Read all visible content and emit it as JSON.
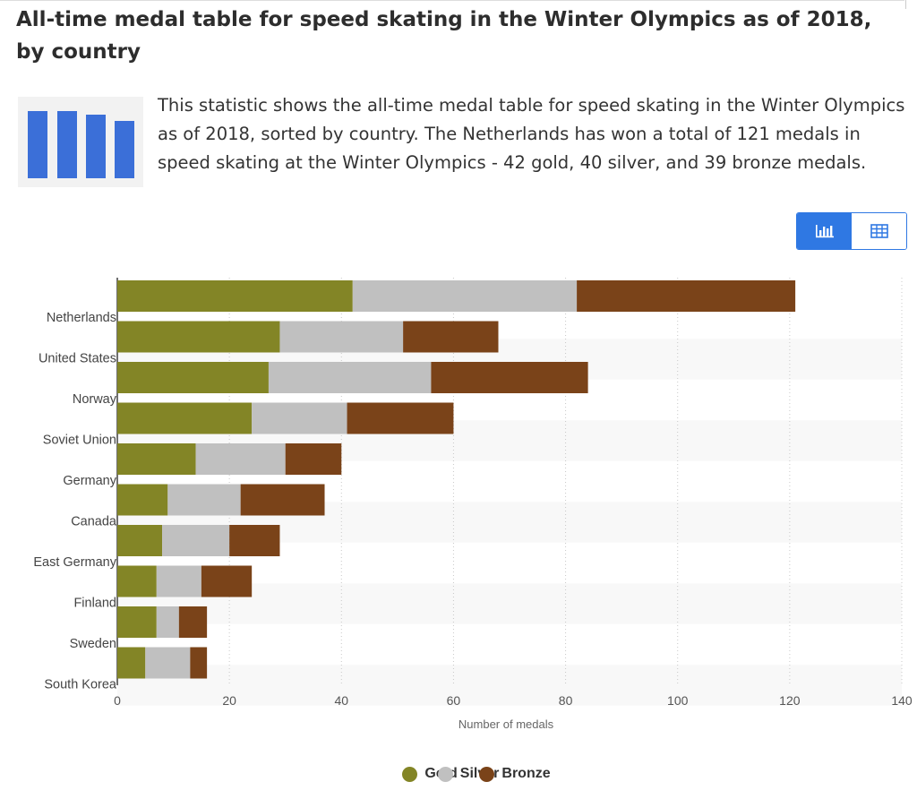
{
  "title": "All-time medal table for speed skating in the Winter Olympics as of 2018, by country",
  "description": "This statistic shows the all-time medal table for speed skating in the Winter Olympics as of 2018, sorted by country. The Netherlands has won a total of 121 medals in speed skating at the Winter Olympics - 42 gold, 40 silver, and 39 bronze medals.",
  "toggle": {
    "chart_icon": "bar-chart-icon",
    "table_icon": "table-icon"
  },
  "thumbnail_icon": "bar-chart-thumbnail-icon",
  "colors": {
    "gold": "#838526",
    "silver": "#c0c0c0",
    "bronze": "#7a4319",
    "accent": "#2f78e3"
  },
  "chart_data": {
    "type": "bar",
    "orientation": "horizontal",
    "stacked": true,
    "categories": [
      "Netherlands",
      "United States",
      "Norway",
      "Soviet Union",
      "Germany",
      "Canada",
      "East Germany",
      "Finland",
      "Sweden",
      "South Korea"
    ],
    "series": [
      {
        "name": "Gold",
        "values": [
          42,
          29,
          27,
          24,
          14,
          9,
          8,
          7,
          7,
          5
        ]
      },
      {
        "name": "Silver",
        "values": [
          40,
          22,
          29,
          17,
          16,
          13,
          12,
          8,
          4,
          8
        ]
      },
      {
        "name": "Bronze",
        "values": [
          39,
          17,
          28,
          19,
          10,
          15,
          9,
          9,
          5,
          3
        ]
      }
    ],
    "xlabel": "Number of medals",
    "ylabel": "",
    "xlim": [
      0,
      140
    ],
    "xticks": [
      0,
      20,
      40,
      60,
      80,
      100,
      120,
      140
    ],
    "grid": "vertical-dotted",
    "legend": "bottom-center"
  },
  "legend": {
    "gold": "Gold",
    "silver": "Silver",
    "bronze": "Bronze"
  }
}
